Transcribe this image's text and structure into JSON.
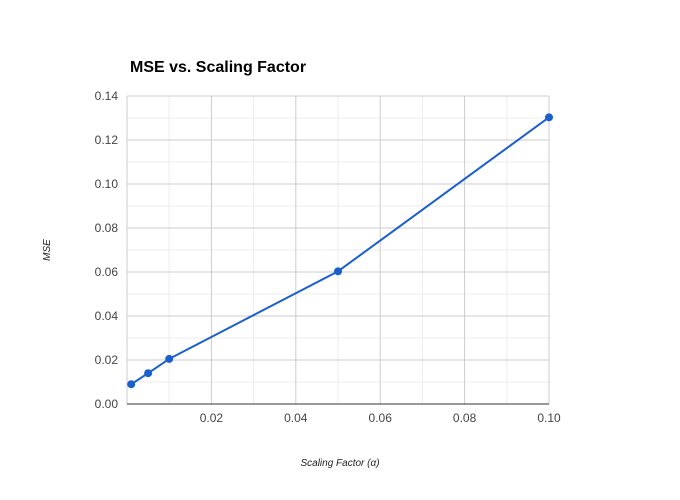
{
  "chart_data": {
    "type": "line",
    "title": "MSE vs. Scaling Factor",
    "xlabel": "Scaling Factor (α)",
    "ylabel": "MSE",
    "xlim": [
      0,
      0.1
    ],
    "ylim": [
      0,
      0.14
    ],
    "x_ticks": [
      0.02,
      0.04,
      0.06,
      0.08,
      0.1
    ],
    "x_tick_labels": [
      "0.02",
      "0.04",
      "0.06",
      "0.08",
      "0.10"
    ],
    "y_ticks": [
      0,
      0.02,
      0.04,
      0.06,
      0.08,
      0.1,
      0.12,
      0.14
    ],
    "y_tick_labels": [
      "0.00",
      "0.02",
      "0.04",
      "0.06",
      "0.08",
      "0.10",
      "0.12",
      "0.14"
    ],
    "grid": true,
    "legend": "none",
    "series": [
      {
        "color": "#1a5fce",
        "x": [
          0.001,
          0.005,
          0.01,
          0.05,
          0.1
        ],
        "y": [
          0.009,
          0.014,
          0.0205,
          0.0603,
          0.1303
        ]
      }
    ]
  }
}
